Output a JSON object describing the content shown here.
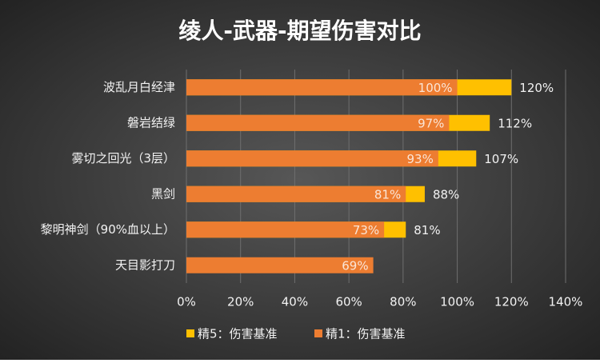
{
  "chart_data": {
    "type": "overlap_bar",
    "title": "绫人-武器-期望伤害对比",
    "categories": [
      "波乱月白经津",
      "磐岩结绿",
      "雾切之回光（3层）",
      "黑剑",
      "黎明神剑（90%血以上）",
      "天目影打刀"
    ],
    "series": [
      {
        "name": "精5：伤害基准",
        "color": "#ffc000",
        "values": [
          120,
          112,
          107,
          88,
          81,
          null
        ],
        "value_labels": [
          "120%",
          "112%",
          "107%",
          "88%",
          "81%",
          null
        ]
      },
      {
        "name": "精1：伤害基准",
        "color": "#ed7d31",
        "values": [
          100,
          97,
          93,
          81,
          73,
          69
        ],
        "value_labels": [
          "100%",
          "97%",
          "93%",
          "81%",
          "73%",
          "69%"
        ]
      }
    ],
    "xlim": [
      0,
      140
    ],
    "xticks": [
      {
        "value": 0,
        "label": "0%"
      },
      {
        "value": 20,
        "label": "20%"
      },
      {
        "value": 40,
        "label": "40%"
      },
      {
        "value": 60,
        "label": "60%"
      },
      {
        "value": 80,
        "label": "80%"
      },
      {
        "value": 100,
        "label": "100%"
      },
      {
        "value": 120,
        "label": "120%"
      },
      {
        "value": 140,
        "label": "140%"
      }
    ],
    "grid": true,
    "legend": "bottom"
  }
}
